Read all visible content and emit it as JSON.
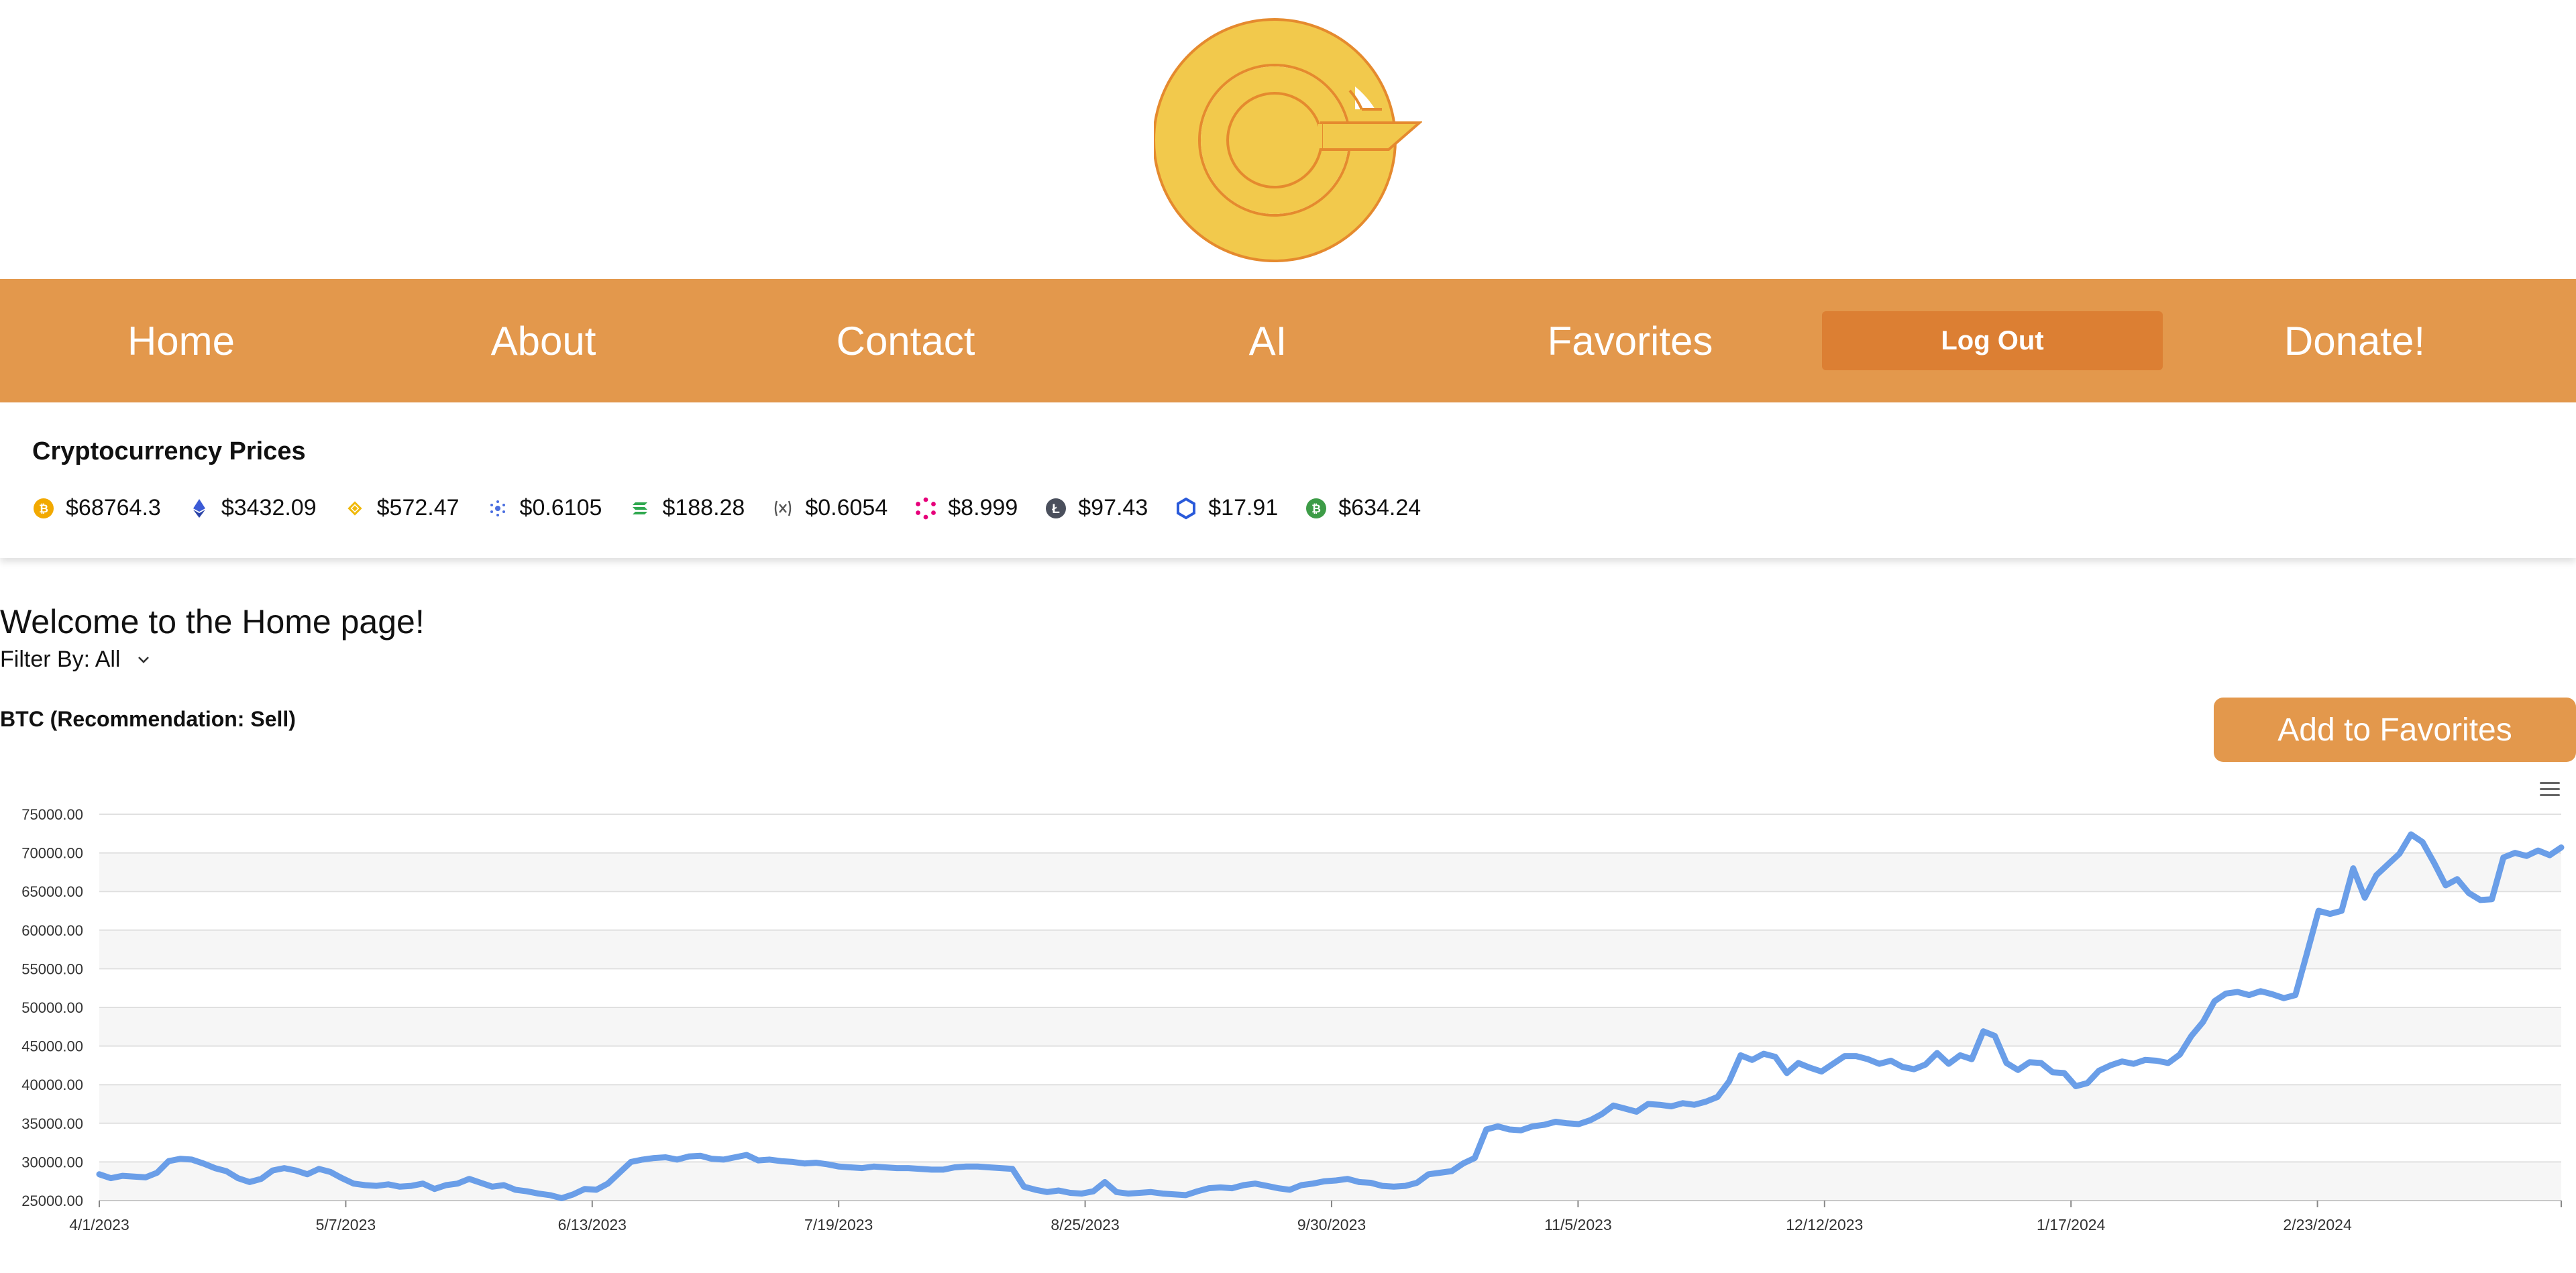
{
  "nav": {
    "items": [
      "Home",
      "About",
      "Contact",
      "AI",
      "Favorites"
    ],
    "logout_label": "Log Out",
    "donate_label": "Donate!"
  },
  "ticker": {
    "title": "Cryptocurrency Prices",
    "coins": [
      {
        "icon": "bitcoin-icon",
        "price": "$68764.3",
        "color": "#f2a900"
      },
      {
        "icon": "ethereum-icon",
        "price": "$3432.09",
        "color": "#3c5bd6"
      },
      {
        "icon": "bnb-icon",
        "price": "$572.47",
        "color": "#f0b90b"
      },
      {
        "icon": "cardano-icon",
        "price": "$0.6105",
        "color": "#4a6ee0"
      },
      {
        "icon": "solana-icon",
        "price": "$188.28",
        "color": "#2fa84f"
      },
      {
        "icon": "xrp-icon",
        "price": "$0.6054",
        "color": "#555555"
      },
      {
        "icon": "polkadot-icon",
        "price": "$8.999",
        "color": "#e6007a"
      },
      {
        "icon": "litecoin-icon",
        "price": "$97.43",
        "color": "#4a4f5c"
      },
      {
        "icon": "chainlink-icon",
        "price": "$17.91",
        "color": "#2a5ada"
      },
      {
        "icon": "bitcoin-cash-icon",
        "price": "$634.24",
        "color": "#3d9c47"
      }
    ]
  },
  "main": {
    "welcome": "Welcome to the Home page!",
    "filter_label": "Filter By: All",
    "chart_heading": "BTC (Recommendation: Sell)",
    "add_favorites_label": "Add to Favorites"
  },
  "colors": {
    "nav_bg": "#e3984c",
    "logout_bg": "#dc7f33",
    "line": "#6a9ee8",
    "logo_gold": "#f2c94c",
    "logo_stroke": "#e58a2e"
  },
  "chart_data": {
    "type": "line",
    "title": "",
    "xlabel": "",
    "ylabel": "",
    "ylim": [
      25000,
      75000
    ],
    "y_ticks": [
      "25000.00",
      "30000.00",
      "35000.00",
      "40000.00",
      "45000.00",
      "50000.00",
      "55000.00",
      "60000.00",
      "65000.00",
      "70000.00",
      "75000.00"
    ],
    "x_ticks": [
      "4/1/2023",
      "5/7/2023",
      "6/13/2023",
      "7/19/2023",
      "8/25/2023",
      "9/30/2023",
      "11/5/2023",
      "12/12/2023",
      "1/17/2024",
      "2/23/2024"
    ],
    "series": [
      {
        "values": [
          28400,
          27900,
          28200,
          28100,
          28000,
          28600,
          30100,
          30400,
          30300,
          29800,
          29200,
          28800,
          27900,
          27400,
          27800,
          28900,
          29200,
          28900,
          28400,
          29100,
          28700,
          27900,
          27200,
          27000,
          26900,
          27100,
          26800,
          26900,
          27200,
          26500,
          27000,
          27200,
          27800,
          27300,
          26800,
          27000,
          26400,
          26200,
          25900,
          25700,
          25300,
          25800,
          26500,
          26400,
          27200,
          28600,
          30000,
          30300,
          30500,
          30600,
          30300,
          30700,
          30800,
          30400,
          30300,
          30600,
          30900,
          30200,
          30300,
          30100,
          30000,
          29800,
          29900,
          29700,
          29400,
          29300,
          29200,
          29400,
          29300,
          29200,
          29200,
          29100,
          29000,
          29000,
          29300,
          29400,
          29400,
          29300,
          29200,
          29100,
          26800,
          26400,
          26100,
          26300,
          26000,
          25900,
          26200,
          27400,
          26100,
          25900,
          26000,
          26100,
          25900,
          25800,
          25700,
          26200,
          26600,
          26700,
          26600,
          27000,
          27200,
          26900,
          26600,
          26400,
          27000,
          27200,
          27500,
          27600,
          27800,
          27400,
          27300,
          26900,
          26800,
          26900,
          27300,
          28400,
          28600,
          28800,
          29800,
          30500,
          34200,
          34600,
          34200,
          34100,
          34600,
          34800,
          35200,
          35000,
          34900,
          35400,
          36200,
          37300,
          36900,
          36500,
          37500,
          37400,
          37200,
          37600,
          37400,
          37800,
          38400,
          40400,
          43800,
          43200,
          44000,
          43600,
          41500,
          42800,
          42200,
          41700,
          42700,
          43700,
          43700,
          43300,
          42700,
          43100,
          42300,
          42000,
          42600,
          44100,
          42700,
          43800,
          43300,
          46900,
          46300,
          42800,
          41900,
          42900,
          42800,
          41600,
          41500,
          39800,
          40200,
          41800,
          42500,
          43000,
          42700,
          43200,
          43100,
          42800,
          43900,
          46300,
          48100,
          50800,
          51800,
          52000,
          51600,
          52100,
          51700,
          51200,
          51600,
          57000,
          62500,
          62100,
          62500,
          68000,
          64200,
          67100,
          68500,
          69900,
          72400,
          71400,
          68700,
          65800,
          66600,
          64800,
          63900,
          64000,
          69400,
          70000,
          69600,
          70300,
          69700,
          70700
        ]
      }
    ],
    "grid": true,
    "legend": "none"
  }
}
